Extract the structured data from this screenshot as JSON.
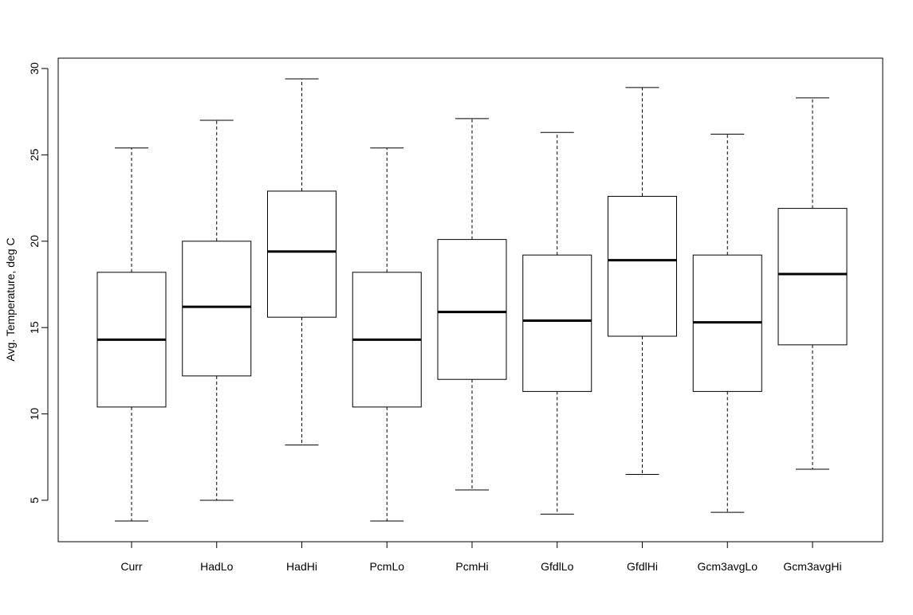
{
  "chart_data": {
    "type": "boxplot",
    "ylabel": "Avg. Temperature, deg C",
    "xlabel": "",
    "title": "",
    "ylim": [
      2.6,
      30.6
    ],
    "yticks": [
      5,
      10,
      15,
      20,
      25,
      30
    ],
    "grid": false,
    "legend": "none",
    "categories": [
      "Curr",
      "HadLo",
      "HadHi",
      "PcmLo",
      "PcmHi",
      "GfdlLo",
      "GfdlHi",
      "Gcm3avgLo",
      "Gcm3avgHi"
    ],
    "boxes": [
      {
        "label": "Curr",
        "min": 3.8,
        "q1": 10.4,
        "median": 14.3,
        "q3": 18.2,
        "max": 25.4
      },
      {
        "label": "HadLo",
        "min": 5.0,
        "q1": 12.2,
        "median": 16.2,
        "q3": 20.0,
        "max": 27.0
      },
      {
        "label": "HadHi",
        "min": 8.2,
        "q1": 15.6,
        "median": 19.4,
        "q3": 22.9,
        "max": 29.4
      },
      {
        "label": "PcmLo",
        "min": 3.8,
        "q1": 10.4,
        "median": 14.3,
        "q3": 18.2,
        "max": 25.4
      },
      {
        "label": "PcmHi",
        "min": 5.6,
        "q1": 12.0,
        "median": 15.9,
        "q3": 20.1,
        "max": 27.1
      },
      {
        "label": "GfdlLo",
        "min": 4.2,
        "q1": 11.3,
        "median": 15.4,
        "q3": 19.2,
        "max": 26.3
      },
      {
        "label": "GfdlHi",
        "min": 6.5,
        "q1": 14.5,
        "median": 18.9,
        "q3": 22.6,
        "max": 28.9
      },
      {
        "label": "Gcm3avgLo",
        "min": 4.3,
        "q1": 11.3,
        "median": 15.3,
        "q3": 19.2,
        "max": 26.2
      },
      {
        "label": "Gcm3avgHi",
        "min": 6.8,
        "q1": 14.0,
        "median": 18.1,
        "q3": 21.9,
        "max": 28.3
      }
    ]
  }
}
